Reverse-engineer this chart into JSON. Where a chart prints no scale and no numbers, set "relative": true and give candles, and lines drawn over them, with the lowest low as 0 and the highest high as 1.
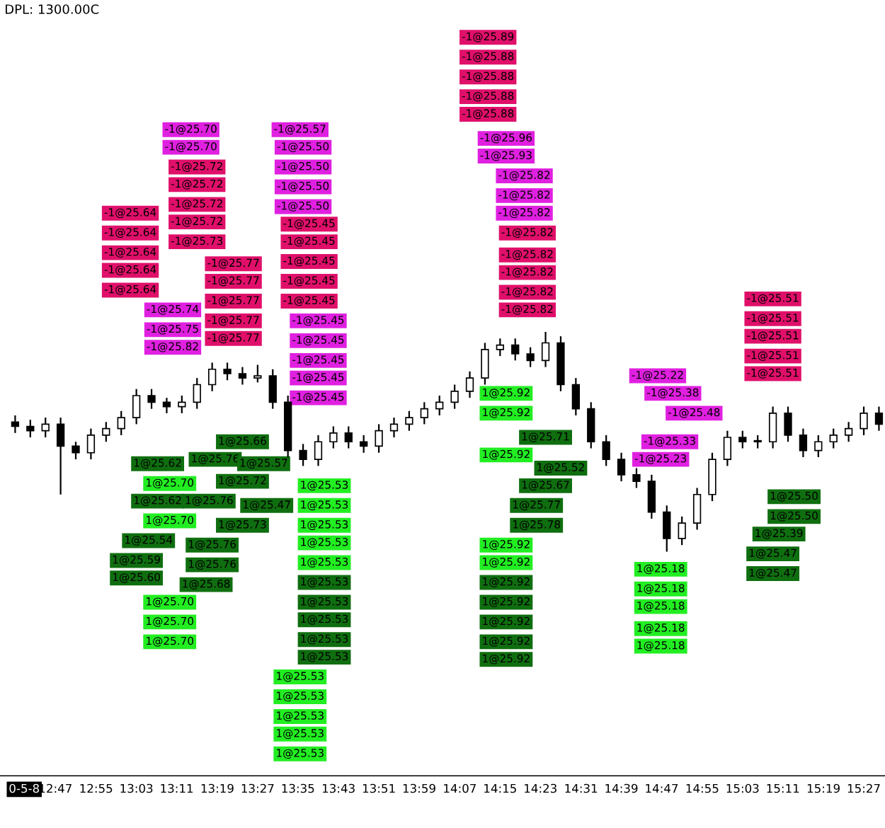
{
  "chart_data": {
    "type": "candlestick",
    "relative": true,
    "tick_labels": "x",
    "x": [
      12.65,
      12.7,
      12.75,
      12.8,
      12.85,
      12.9,
      12.95,
      13.0,
      13.05,
      13.1,
      13.15,
      13.2,
      13.25,
      13.3,
      13.35,
      13.4,
      13.45,
      13.5,
      13.55,
      13.6,
      13.65,
      13.7,
      13.75,
      13.8,
      13.85,
      13.9,
      13.95,
      14.0,
      14.05,
      14.1,
      14.15,
      14.2,
      14.25,
      14.3,
      14.35,
      14.4,
      14.45,
      14.5,
      14.55,
      14.6,
      14.65,
      14.7,
      14.75,
      14.8,
      14.85,
      14.9,
      14.95,
      15.0,
      15.05,
      15.1,
      15.15,
      15.2,
      15.25,
      15.3,
      15.35,
      15.4,
      15.45,
      15.5
    ],
    "ohlc": [
      [
        0.59,
        0.62,
        0.54,
        0.57
      ],
      [
        0.57,
        0.6,
        0.52,
        0.55
      ],
      [
        0.55,
        0.61,
        0.52,
        0.58
      ],
      [
        0.58,
        0.61,
        0.26,
        0.48
      ],
      [
        0.48,
        0.5,
        0.42,
        0.45
      ],
      [
        0.45,
        0.56,
        0.42,
        0.53
      ],
      [
        0.53,
        0.59,
        0.5,
        0.56
      ],
      [
        0.56,
        0.64,
        0.53,
        0.61
      ],
      [
        0.61,
        0.74,
        0.58,
        0.71
      ],
      [
        0.71,
        0.74,
        0.65,
        0.68
      ],
      [
        0.68,
        0.7,
        0.63,
        0.66
      ],
      [
        0.66,
        0.71,
        0.63,
        0.68
      ],
      [
        0.68,
        0.79,
        0.65,
        0.76
      ],
      [
        0.76,
        0.86,
        0.73,
        0.83
      ],
      [
        0.83,
        0.86,
        0.78,
        0.81
      ],
      [
        0.81,
        0.84,
        0.76,
        0.79
      ],
      [
        0.79,
        0.85,
        0.77,
        0.8
      ],
      [
        0.8,
        0.83,
        0.65,
        0.68
      ],
      [
        0.68,
        0.71,
        0.43,
        0.46
      ],
      [
        0.46,
        0.49,
        0.39,
        0.42
      ],
      [
        0.42,
        0.53,
        0.39,
        0.5
      ],
      [
        0.5,
        0.57,
        0.47,
        0.54
      ],
      [
        0.54,
        0.57,
        0.47,
        0.5
      ],
      [
        0.5,
        0.53,
        0.45,
        0.48
      ],
      [
        0.48,
        0.58,
        0.45,
        0.55
      ],
      [
        0.55,
        0.61,
        0.52,
        0.58
      ],
      [
        0.58,
        0.64,
        0.55,
        0.61
      ],
      [
        0.61,
        0.68,
        0.58,
        0.65
      ],
      [
        0.65,
        0.71,
        0.62,
        0.68
      ],
      [
        0.68,
        0.76,
        0.65,
        0.73
      ],
      [
        0.73,
        0.82,
        0.7,
        0.79
      ],
      [
        0.79,
        0.95,
        0.76,
        0.92
      ],
      [
        0.92,
        0.97,
        0.89,
        0.94
      ],
      [
        0.94,
        0.97,
        0.87,
        0.9
      ],
      [
        0.9,
        0.93,
        0.84,
        0.87
      ],
      [
        0.87,
        1.0,
        0.84,
        0.95
      ],
      [
        0.95,
        0.98,
        0.73,
        0.76
      ],
      [
        0.76,
        0.79,
        0.62,
        0.65
      ],
      [
        0.65,
        0.68,
        0.47,
        0.5
      ],
      [
        0.5,
        0.53,
        0.39,
        0.42
      ],
      [
        0.42,
        0.45,
        0.32,
        0.35
      ],
      [
        0.35,
        0.38,
        0.29,
        0.32
      ],
      [
        0.32,
        0.35,
        0.15,
        0.18
      ],
      [
        0.18,
        0.21,
        0.0,
        0.06
      ],
      [
        0.06,
        0.16,
        0.03,
        0.13
      ],
      [
        0.13,
        0.29,
        0.1,
        0.26
      ],
      [
        0.26,
        0.45,
        0.23,
        0.42
      ],
      [
        0.42,
        0.55,
        0.39,
        0.52
      ],
      [
        0.52,
        0.55,
        0.47,
        0.5
      ],
      [
        0.5,
        0.53,
        0.47,
        0.5
      ],
      [
        0.5,
        0.66,
        0.47,
        0.63
      ],
      [
        0.63,
        0.66,
        0.5,
        0.53
      ],
      [
        0.53,
        0.56,
        0.43,
        0.46
      ],
      [
        0.46,
        0.53,
        0.43,
        0.5
      ],
      [
        0.5,
        0.56,
        0.47,
        0.53
      ],
      [
        0.53,
        0.59,
        0.5,
        0.56
      ],
      [
        0.56,
        0.66,
        0.53,
        0.63
      ],
      [
        0.63,
        0.66,
        0.55,
        0.58
      ]
    ],
    "xlim": [
      12.6,
      15.52
    ],
    "xticks": [
      {
        "value": 12.68,
        "label": "0-5-8"
      },
      {
        "value": 12.783,
        "label": "12:47"
      },
      {
        "value": 12.917,
        "label": "12:55"
      },
      {
        "value": 13.05,
        "label": "13:03"
      },
      {
        "value": 13.183,
        "label": "13:11"
      },
      {
        "value": 13.317,
        "label": "13:19"
      },
      {
        "value": 13.45,
        "label": "13:27"
      },
      {
        "value": 13.583,
        "label": "13:35"
      },
      {
        "value": 13.717,
        "label": "13:43"
      },
      {
        "value": 13.85,
        "label": "13:51"
      },
      {
        "value": 13.983,
        "label": "13:59"
      },
      {
        "value": 14.117,
        "label": "14:07"
      },
      {
        "value": 14.25,
        "label": "14:15"
      },
      {
        "value": 14.383,
        "label": "14:23"
      },
      {
        "value": 14.517,
        "label": "14:31"
      },
      {
        "value": 14.65,
        "label": "14:39"
      },
      {
        "value": 14.783,
        "label": "14:47"
      },
      {
        "value": 14.917,
        "label": "14:55"
      },
      {
        "value": 15.05,
        "label": "15:03"
      },
      {
        "value": 15.183,
        "label": "15:11"
      },
      {
        "value": 15.317,
        "label": "15:19"
      },
      {
        "value": 15.45,
        "label": "15:27"
      }
    ],
    "annotations": [
      "DPL: 1300.00C",
      "-1@25.64",
      "-1@25.64",
      "-1@25.64",
      "-1@25.64",
      "-1@25.64",
      "-1@25.74",
      "-1@25.75",
      "-1@25.82",
      "-1@25.70",
      "-1@25.70",
      "-1@25.72",
      "-1@25.72",
      "-1@25.72",
      "-1@25.72",
      "-1@25.73",
      "-1@25.77",
      "-1@25.77",
      "-1@25.77",
      "-1@25.77",
      "-1@25.77",
      "-1@25.57",
      "-1@25.50",
      "-1@25.50",
      "-1@25.50",
      "-1@25.50",
      "-1@25.45",
      "-1@25.45",
      "-1@25.45",
      "-1@25.45",
      "-1@25.45",
      "-1@25.45",
      "-1@25.45",
      "-1@25.45",
      "-1@25.45",
      "-1@25.45",
      "1@25.62",
      "1@25.70",
      "1@25.62",
      "1@25.70",
      "1@25.54",
      "1@25.59",
      "1@25.60",
      "1@25.70",
      "1@25.70",
      "1@25.70",
      "1@25.76",
      "1@25.76",
      "1@25.76",
      "1@25.76",
      "1@25.68",
      "1@25.66",
      "1@25.57",
      "1@25.72",
      "1@25.47",
      "1@25.73",
      "1@25.53",
      "1@25.53",
      "1@25.53",
      "1@25.53",
      "1@25.53",
      "1@25.53",
      "1@25.53",
      "1@25.53",
      "1@25.53",
      "1@25.53",
      "1@25.53",
      "1@25.53",
      "1@25.53",
      "1@25.53",
      "1@25.53",
      "-1@25.89",
      "-1@25.88",
      "-1@25.88",
      "-1@25.88",
      "-1@25.88",
      "-1@25.96",
      "-1@25.93",
      "-1@25.82",
      "-1@25.82",
      "-1@25.82",
      "-1@25.82",
      "-1@25.82",
      "-1@25.82",
      "-1@25.82",
      "-1@25.82",
      "-1@25.51",
      "-1@25.51",
      "-1@25.51",
      "-1@25.51",
      "-1@25.51",
      "-1@25.22",
      "-1@25.38",
      "-1@25.48",
      "-1@25.33",
      "-1@25.23",
      "1@25.92",
      "1@25.92",
      "1@25.71",
      "1@25.92",
      "1@25.52",
      "1@25.67",
      "1@25.77",
      "1@25.78",
      "1@25.92",
      "1@25.92",
      "1@25.92",
      "1@25.92",
      "1@25.92",
      "1@25.92",
      "1@25.92",
      "1@25.18",
      "1@25.18",
      "1@25.18",
      "1@25.18",
      "1@25.18",
      "1@25.50",
      "1@25.50",
      "1@25.39",
      "1@25.47",
      "1@25.47"
    ]
  }
}
